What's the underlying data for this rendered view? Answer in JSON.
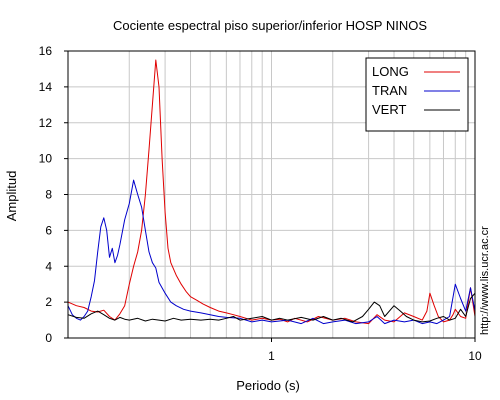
{
  "chart_data": {
    "type": "line",
    "title": "Cociente espectral piso superior/inferior  HOSP NINOS",
    "xlabel": "Periodo (s)",
    "ylabel": "Amplitud",
    "xscale": "log",
    "xlim": [
      0.1,
      10
    ],
    "ylim": [
      0,
      16
    ],
    "xticks": [
      1,
      10
    ],
    "xtick_labels": [
      "1",
      "10"
    ],
    "yticks": [
      0,
      2,
      4,
      6,
      8,
      10,
      12,
      14,
      16
    ],
    "ytick_labels": [
      "0",
      "2",
      "4",
      "6",
      "8",
      "10",
      "12",
      "14",
      "16"
    ],
    "grid": true,
    "legend_position": "top-right",
    "side_text": "http://www.lis.ucr.ac.cr",
    "series": [
      {
        "name": "LONG",
        "color": "#e00000",
        "points": [
          [
            0.1,
            2.0
          ],
          [
            0.11,
            1.8
          ],
          [
            0.12,
            1.7
          ],
          [
            0.13,
            1.5
          ],
          [
            0.14,
            1.45
          ],
          [
            0.15,
            1.55
          ],
          [
            0.16,
            1.2
          ],
          [
            0.17,
            1.0
          ],
          [
            0.18,
            1.35
          ],
          [
            0.19,
            1.8
          ],
          [
            0.2,
            3.0
          ],
          [
            0.21,
            4.0
          ],
          [
            0.22,
            4.8
          ],
          [
            0.23,
            6.0
          ],
          [
            0.24,
            8.0
          ],
          [
            0.25,
            10.5
          ],
          [
            0.26,
            13.0
          ],
          [
            0.27,
            15.5
          ],
          [
            0.28,
            14.0
          ],
          [
            0.29,
            10.0
          ],
          [
            0.3,
            7.0
          ],
          [
            0.31,
            5.0
          ],
          [
            0.32,
            4.2
          ],
          [
            0.34,
            3.5
          ],
          [
            0.36,
            3.0
          ],
          [
            0.38,
            2.6
          ],
          [
            0.4,
            2.3
          ],
          [
            0.43,
            2.1
          ],
          [
            0.46,
            1.9
          ],
          [
            0.5,
            1.7
          ],
          [
            0.55,
            1.5
          ],
          [
            0.6,
            1.4
          ],
          [
            0.65,
            1.3
          ],
          [
            0.7,
            1.2
          ],
          [
            0.75,
            1.1
          ],
          [
            0.8,
            1.0
          ],
          [
            0.9,
            1.1
          ],
          [
            1.0,
            1.0
          ],
          [
            1.1,
            1.05
          ],
          [
            1.2,
            0.9
          ],
          [
            1.3,
            1.1
          ],
          [
            1.5,
            0.9
          ],
          [
            1.7,
            1.2
          ],
          [
            2.0,
            1.0
          ],
          [
            2.3,
            1.1
          ],
          [
            2.6,
            0.9
          ],
          [
            3.0,
            0.8
          ],
          [
            3.3,
            1.3
          ],
          [
            3.6,
            1.0
          ],
          [
            4.0,
            0.9
          ],
          [
            4.5,
            1.4
          ],
          [
            5.0,
            1.2
          ],
          [
            5.5,
            1.0
          ],
          [
            5.8,
            1.5
          ],
          [
            6.0,
            2.5
          ],
          [
            6.3,
            1.8
          ],
          [
            6.6,
            1.2
          ],
          [
            7.0,
            0.9
          ],
          [
            7.5,
            1.0
          ],
          [
            7.8,
            1.3
          ],
          [
            8.0,
            1.6
          ],
          [
            8.5,
            1.2
          ],
          [
            9.0,
            1.1
          ],
          [
            9.5,
            2.8
          ],
          [
            10.0,
            1.2
          ]
        ]
      },
      {
        "name": "TRAN",
        "color": "#0000cc",
        "points": [
          [
            0.1,
            1.8
          ],
          [
            0.105,
            1.3
          ],
          [
            0.11,
            1.1
          ],
          [
            0.115,
            1.0
          ],
          [
            0.12,
            1.2
          ],
          [
            0.125,
            1.5
          ],
          [
            0.13,
            2.3
          ],
          [
            0.135,
            3.2
          ],
          [
            0.14,
            4.8
          ],
          [
            0.145,
            6.2
          ],
          [
            0.15,
            6.7
          ],
          [
            0.155,
            6.0
          ],
          [
            0.16,
            4.5
          ],
          [
            0.165,
            5.0
          ],
          [
            0.17,
            4.2
          ],
          [
            0.175,
            4.6
          ],
          [
            0.18,
            5.2
          ],
          [
            0.19,
            6.6
          ],
          [
            0.2,
            7.5
          ],
          [
            0.21,
            8.8
          ],
          [
            0.22,
            8.0
          ],
          [
            0.23,
            7.3
          ],
          [
            0.24,
            6.0
          ],
          [
            0.25,
            4.8
          ],
          [
            0.26,
            4.2
          ],
          [
            0.27,
            3.9
          ],
          [
            0.28,
            3.1
          ],
          [
            0.3,
            2.5
          ],
          [
            0.32,
            2.0
          ],
          [
            0.34,
            1.8
          ],
          [
            0.37,
            1.6
          ],
          [
            0.4,
            1.5
          ],
          [
            0.45,
            1.4
          ],
          [
            0.5,
            1.3
          ],
          [
            0.55,
            1.2
          ],
          [
            0.6,
            1.15
          ],
          [
            0.7,
            1.1
          ],
          [
            0.8,
            0.9
          ],
          [
            0.9,
            1.0
          ],
          [
            1.0,
            0.9
          ],
          [
            1.2,
            1.0
          ],
          [
            1.4,
            0.8
          ],
          [
            1.6,
            1.1
          ],
          [
            1.8,
            0.8
          ],
          [
            2.0,
            0.9
          ],
          [
            2.3,
            1.0
          ],
          [
            2.6,
            0.8
          ],
          [
            3.0,
            0.9
          ],
          [
            3.3,
            1.2
          ],
          [
            3.6,
            0.8
          ],
          [
            4.0,
            1.0
          ],
          [
            4.5,
            0.9
          ],
          [
            5.0,
            1.0
          ],
          [
            5.5,
            0.8
          ],
          [
            6.0,
            0.9
          ],
          [
            6.5,
            0.8
          ],
          [
            7.0,
            1.0
          ],
          [
            7.5,
            1.2
          ],
          [
            8.0,
            3.0
          ],
          [
            8.5,
            2.2
          ],
          [
            9.0,
            1.5
          ],
          [
            9.5,
            2.8
          ],
          [
            10.0,
            1.5
          ]
        ]
      },
      {
        "name": "VERT",
        "color": "#000000",
        "points": [
          [
            0.1,
            1.3
          ],
          [
            0.11,
            1.15
          ],
          [
            0.12,
            1.1
          ],
          [
            0.13,
            1.35
          ],
          [
            0.14,
            1.5
          ],
          [
            0.15,
            1.3
          ],
          [
            0.16,
            1.1
          ],
          [
            0.17,
            1.0
          ],
          [
            0.18,
            1.15
          ],
          [
            0.19,
            1.05
          ],
          [
            0.2,
            1.0
          ],
          [
            0.22,
            1.1
          ],
          [
            0.24,
            0.95
          ],
          [
            0.26,
            1.05
          ],
          [
            0.28,
            1.0
          ],
          [
            0.3,
            0.95
          ],
          [
            0.33,
            1.1
          ],
          [
            0.36,
            1.0
          ],
          [
            0.4,
            1.05
          ],
          [
            0.45,
            1.0
          ],
          [
            0.5,
            1.05
          ],
          [
            0.55,
            1.0
          ],
          [
            0.6,
            1.1
          ],
          [
            0.65,
            1.2
          ],
          [
            0.7,
            1.0
          ],
          [
            0.8,
            1.1
          ],
          [
            0.9,
            1.2
          ],
          [
            1.0,
            1.0
          ],
          [
            1.1,
            1.1
          ],
          [
            1.2,
            1.0
          ],
          [
            1.4,
            1.15
          ],
          [
            1.6,
            1.0
          ],
          [
            1.8,
            1.2
          ],
          [
            2.0,
            1.0
          ],
          [
            2.2,
            1.1
          ],
          [
            2.5,
            0.9
          ],
          [
            2.8,
            1.2
          ],
          [
            3.0,
            1.6
          ],
          [
            3.2,
            2.0
          ],
          [
            3.4,
            1.8
          ],
          [
            3.6,
            1.2
          ],
          [
            4.0,
            1.8
          ],
          [
            4.3,
            1.5
          ],
          [
            4.6,
            1.2
          ],
          [
            5.0,
            1.0
          ],
          [
            5.5,
            0.9
          ],
          [
            6.0,
            0.95
          ],
          [
            6.5,
            1.1
          ],
          [
            7.0,
            1.2
          ],
          [
            7.5,
            1.0
          ],
          [
            8.0,
            1.1
          ],
          [
            8.5,
            1.6
          ],
          [
            9.0,
            1.2
          ],
          [
            9.5,
            2.2
          ],
          [
            10.0,
            2.5
          ]
        ]
      }
    ]
  }
}
